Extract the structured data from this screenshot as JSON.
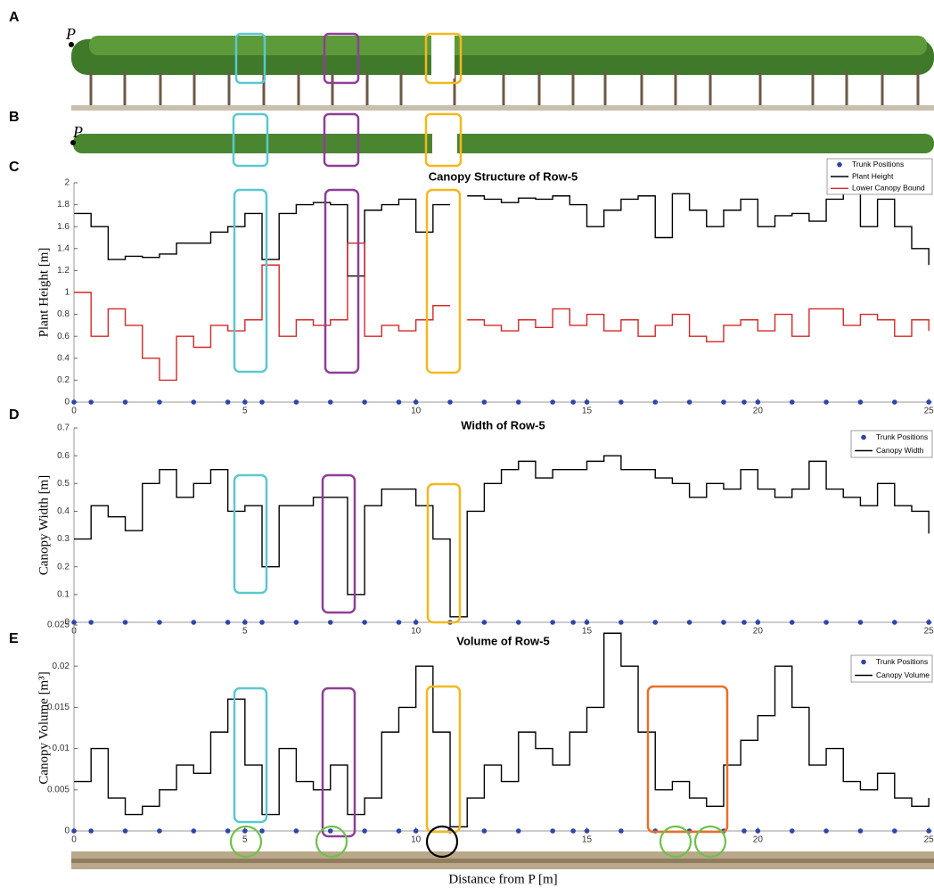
{
  "panel_labels": [
    "A",
    "B",
    "C",
    "D",
    "E"
  ],
  "point_labels": [
    "P",
    "P"
  ],
  "chart_data": [
    {
      "type": "line",
      "step": true,
      "title": "Canopy Structure of Row-5",
      "ylabel": "Plant Height [m]",
      "xlim": [
        0,
        25.1
      ],
      "xticks": [
        0,
        5,
        10,
        15,
        20,
        25
      ],
      "ylim": [
        0,
        2
      ],
      "yticks": [
        0,
        0.2,
        0.4,
        0.6,
        0.8,
        1,
        1.2,
        1.4,
        1.6,
        1.8,
        2
      ],
      "x": [
        0,
        0.5,
        1,
        1.5,
        2,
        2.5,
        3,
        3.5,
        4,
        4.5,
        5,
        5.5,
        6,
        6.5,
        7,
        7.5,
        8,
        8.5,
        9,
        9.5,
        10,
        10.5,
        11,
        11.5,
        12,
        12.5,
        13,
        13.5,
        14,
        14.5,
        15,
        15.5,
        16,
        16.5,
        17,
        17.5,
        18,
        18.5,
        19,
        19.5,
        20,
        20.5,
        21,
        21.5,
        22,
        22.5,
        23,
        23.5,
        24,
        24.5,
        25
      ],
      "series": [
        {
          "name": "Trunk Positions",
          "color": "#2f45a8",
          "marker": "dot",
          "x": [
            0,
            0.5,
            1.5,
            2.5,
            3.5,
            4.5,
            5,
            5.5,
            6.5,
            7.5,
            8.5,
            9.5,
            10,
            11,
            12,
            13,
            14,
            14.6,
            15,
            16,
            17,
            18,
            19,
            19.6,
            20,
            21,
            22,
            23,
            24,
            25
          ],
          "values": [
            0,
            0,
            0,
            0,
            0,
            0,
            0,
            0,
            0,
            0,
            0,
            0,
            0,
            0,
            0,
            0,
            0,
            0,
            0,
            0,
            0,
            0,
            0,
            0,
            0,
            0,
            0,
            0,
            0,
            0
          ]
        },
        {
          "name": "Plant Height",
          "color": "#000000",
          "values": [
            1.72,
            1.6,
            1.3,
            1.33,
            1.32,
            1.35,
            1.45,
            1.45,
            1.55,
            1.6,
            1.72,
            1.3,
            1.72,
            1.8,
            1.82,
            1.8,
            1.15,
            1.75,
            1.8,
            1.85,
            1.55,
            1.8,
            null,
            1.88,
            1.85,
            1.82,
            1.86,
            1.85,
            1.88,
            1.8,
            1.6,
            1.75,
            1.85,
            1.88,
            1.5,
            1.9,
            1.75,
            1.6,
            1.75,
            1.85,
            1.6,
            1.7,
            1.72,
            1.65,
            1.85,
            1.9,
            1.6,
            1.85,
            1.6,
            1.4,
            1.25
          ]
        },
        {
          "name": "Lower Canopy Bound",
          "color": "#d62728",
          "values": [
            1.0,
            0.6,
            0.85,
            0.7,
            0.4,
            0.2,
            0.6,
            0.5,
            0.7,
            0.65,
            0.75,
            1.25,
            0.6,
            0.75,
            0.7,
            0.75,
            1.45,
            0.6,
            0.7,
            0.65,
            0.75,
            0.88,
            null,
            0.75,
            0.7,
            0.65,
            0.75,
            0.68,
            0.85,
            0.7,
            0.8,
            0.65,
            0.75,
            0.6,
            0.7,
            0.8,
            0.6,
            0.55,
            0.7,
            0.75,
            0.65,
            0.8,
            0.6,
            0.85,
            0.85,
            0.7,
            0.8,
            0.75,
            0.6,
            0.75,
            0.65
          ]
        }
      ]
    },
    {
      "type": "line",
      "step": true,
      "title": "Width of Row-5",
      "ylabel": "Canopy Width [m]",
      "xlim": [
        0,
        25.1
      ],
      "xticks": [
        0,
        5,
        10,
        15,
        20,
        25
      ],
      "ylim": [
        0,
        0.7
      ],
      "yticks": [
        0,
        0.1,
        0.2,
        0.3,
        0.4,
        0.5,
        0.6,
        0.7
      ],
      "x": [
        0,
        0.5,
        1,
        1.5,
        2,
        2.5,
        3,
        3.5,
        4,
        4.5,
        5,
        5.5,
        6,
        6.5,
        7,
        7.5,
        8,
        8.5,
        9,
        9.5,
        10,
        10.5,
        11,
        11.5,
        12,
        12.5,
        13,
        13.5,
        14,
        14.5,
        15,
        15.5,
        16,
        16.5,
        17,
        17.5,
        18,
        18.5,
        19,
        19.5,
        20,
        20.5,
        21,
        21.5,
        22,
        22.5,
        23,
        23.5,
        24,
        24.5,
        25
      ],
      "series": [
        {
          "name": "Trunk Positions",
          "color": "#2f45a8",
          "marker": "dot",
          "x": [
            0,
            0.5,
            1.5,
            2.5,
            3.5,
            4.5,
            5,
            5.5,
            6.5,
            7.5,
            8.5,
            9.5,
            10,
            11,
            12,
            13,
            14,
            14.6,
            15,
            16,
            17,
            18,
            19,
            19.6,
            20,
            21,
            22,
            23,
            24,
            25
          ],
          "values": [
            0,
            0,
            0,
            0,
            0,
            0,
            0,
            0,
            0,
            0,
            0,
            0,
            0,
            0,
            0,
            0,
            0,
            0,
            0,
            0,
            0,
            0,
            0,
            0,
            0,
            0,
            0,
            0,
            0,
            0
          ]
        },
        {
          "name": "Canopy Width",
          "color": "#000000",
          "values": [
            0.3,
            0.42,
            0.38,
            0.33,
            0.5,
            0.55,
            0.45,
            0.5,
            0.55,
            0.4,
            0.42,
            0.2,
            0.42,
            0.42,
            0.45,
            0.45,
            0.1,
            0.42,
            0.48,
            0.48,
            0.42,
            0.3,
            0.02,
            0.4,
            0.5,
            0.55,
            0.58,
            0.52,
            0.55,
            0.55,
            0.58,
            0.6,
            0.55,
            0.55,
            0.52,
            0.5,
            0.45,
            0.5,
            0.48,
            0.55,
            0.48,
            0.45,
            0.48,
            0.58,
            0.48,
            0.45,
            0.42,
            0.5,
            0.42,
            0.4,
            0.32
          ]
        }
      ]
    },
    {
      "type": "line",
      "step": true,
      "title": "Volume of Row-5",
      "ylabel": "Canopy Volume [m³]",
      "xlabel": "Distance from P [m]",
      "xlim": [
        0,
        25.1
      ],
      "xticks": [
        0,
        5,
        10,
        15,
        20,
        25
      ],
      "ylim": [
        0,
        0.025
      ],
      "yticks": [
        0,
        0.005,
        0.01,
        0.015,
        0.02,
        0.025
      ],
      "x": [
        0,
        0.5,
        1,
        1.5,
        2,
        2.5,
        3,
        3.5,
        4,
        4.5,
        5,
        5.5,
        6,
        6.5,
        7,
        7.5,
        8,
        8.5,
        9,
        9.5,
        10,
        10.5,
        11,
        11.5,
        12,
        12.5,
        13,
        13.5,
        14,
        14.5,
        15,
        15.5,
        16,
        16.5,
        17,
        17.5,
        18,
        18.5,
        19,
        19.5,
        20,
        20.5,
        21,
        21.5,
        22,
        22.5,
        23,
        23.5,
        24,
        24.5,
        25
      ],
      "series": [
        {
          "name": "Trunk Positions",
          "color": "#2f45a8",
          "marker": "dot",
          "x": [
            0,
            0.5,
            1.5,
            2.5,
            3.5,
            4.5,
            5,
            5.5,
            6.5,
            7.5,
            8.5,
            9.5,
            10,
            11,
            12,
            13,
            14,
            14.6,
            15,
            16,
            17,
            18,
            19,
            19.6,
            20,
            21,
            22,
            23,
            24,
            25
          ],
          "values": [
            0,
            0,
            0,
            0,
            0,
            0,
            0,
            0,
            0,
            0,
            0,
            0,
            0,
            0,
            0,
            0,
            0,
            0,
            0,
            0,
            0,
            0,
            0,
            0,
            0,
            0,
            0,
            0,
            0,
            0
          ]
        },
        {
          "name": "Canopy Volume",
          "color": "#000000",
          "values": [
            0.006,
            0.01,
            0.004,
            0.002,
            0.003,
            0.005,
            0.008,
            0.007,
            0.012,
            0.016,
            0.008,
            0.002,
            0.01,
            0.006,
            0.005,
            0.008,
            0.002,
            0.004,
            0.012,
            0.015,
            0.02,
            0.012,
            0.0005,
            0.004,
            0.008,
            0.006,
            0.012,
            0.01,
            0.008,
            0.012,
            0.015,
            0.024,
            0.02,
            0.012,
            0.005,
            0.006,
            0.004,
            0.003,
            0.008,
            0.011,
            0.014,
            0.02,
            0.015,
            0.008,
            0.01,
            0.006,
            0.005,
            0.007,
            0.004,
            0.003,
            0.004
          ]
        }
      ]
    }
  ]
}
